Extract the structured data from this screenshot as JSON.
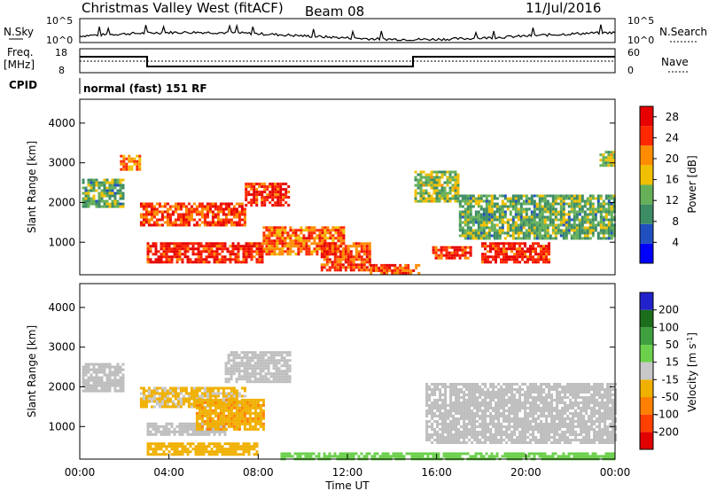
{
  "header": {
    "title": "Christmas Valley West (fitACF)",
    "beam": "Beam 08",
    "date": "11/Jul/2016"
  },
  "strips": {
    "nsky_label": "N.Sky",
    "nsky_ticks": [
      "10^5",
      "10^0"
    ],
    "nsearch_label": "N.Search",
    "nsearch_ticks": [
      "10^5",
      "10^0"
    ],
    "freq_label_1": "Freq.",
    "freq_label_2": "[MHz]",
    "freq_ticks": [
      "18",
      "8"
    ],
    "nave_label": "Nave",
    "nave_ticks": [
      "60",
      "0"
    ],
    "cpid_label": "CPID",
    "cpid_text": "normal (fast) 151 RF"
  },
  "colors": {
    "power_scale": [
      "#0000ff",
      "#2050c0",
      "#3c8c64",
      "#66b05a",
      "#f0c000",
      "#ff8c00",
      "#ff2800",
      "#e60000"
    ],
    "velocity_scale": [
      "#2222cc",
      "#1c6e1c",
      "#3fa03f",
      "#6cd04c",
      "#c8c8c8",
      "#f0b000",
      "#ff8000",
      "#ff4000",
      "#e00000"
    ],
    "ground_scatter": "#bebebe"
  },
  "chart_data": [
    {
      "type": "heatmap",
      "panel": "power",
      "title": "",
      "xlabel": "Time UT",
      "ylabel": "Slant Range [km]",
      "x_ticks": [
        "00:00",
        "04:00",
        "08:00",
        "12:00",
        "16:00",
        "20:00",
        "00:00"
      ],
      "y_ticks": [
        1000,
        2000,
        3000,
        4000
      ],
      "xlim": [
        0,
        24
      ],
      "ylim": [
        180,
        4600
      ],
      "colorbar": {
        "label": "Power [dB]",
        "ticks": [
          4,
          8,
          12,
          16,
          20,
          24,
          28
        ],
        "range": [
          0,
          30
        ]
      },
      "regions": [
        {
          "t0": 0.1,
          "t1": 2.0,
          "r0": 1900,
          "r1": 2600,
          "level": 12
        },
        {
          "t0": 1.8,
          "t1": 2.7,
          "r0": 2800,
          "r1": 3200,
          "level": 20
        },
        {
          "t0": 2.7,
          "t1": 7.4,
          "r0": 1400,
          "r1": 2000,
          "level": 24
        },
        {
          "t0": 7.4,
          "t1": 9.4,
          "r0": 1900,
          "r1": 2500,
          "level": 26
        },
        {
          "t0": 3.0,
          "t1": 8.2,
          "r0": 500,
          "r1": 1000,
          "level": 26
        },
        {
          "t0": 8.2,
          "t1": 11.8,
          "r0": 700,
          "r1": 1400,
          "level": 22
        },
        {
          "t0": 10.8,
          "t1": 13.0,
          "r0": 300,
          "r1": 1000,
          "level": 24
        },
        {
          "t0": 13.0,
          "t1": 15.2,
          "r0": 200,
          "r1": 450,
          "level": 24
        },
        {
          "t0": 15.8,
          "t1": 17.5,
          "r0": 600,
          "r1": 900,
          "level": 26
        },
        {
          "t0": 18.0,
          "t1": 21.0,
          "r0": 500,
          "r1": 1000,
          "level": 26
        },
        {
          "t0": 17.0,
          "t1": 24.0,
          "r0": 1100,
          "r1": 2200,
          "level": 12
        },
        {
          "t0": 15.0,
          "t1": 17.0,
          "r0": 2000,
          "r1": 2800,
          "level": 14
        },
        {
          "t0": 23.3,
          "t1": 24.0,
          "r0": 2900,
          "r1": 3300,
          "level": 14
        }
      ]
    },
    {
      "type": "heatmap",
      "panel": "velocity",
      "title": "",
      "xlabel": "Time UT",
      "ylabel": "Slant Range [km]",
      "x_ticks": [
        "00:00",
        "04:00",
        "08:00",
        "12:00",
        "16:00",
        "20:00",
        "00:00"
      ],
      "y_ticks": [
        1000,
        2000,
        3000,
        4000
      ],
      "xlim": [
        0,
        24
      ],
      "ylim": [
        180,
        4600
      ],
      "colorbar": {
        "label": "Velocity [m s^-1]",
        "ticks": [
          200,
          100,
          50,
          15,
          -15,
          -50,
          -100,
          -200
        ],
        "range": [
          -250,
          250
        ]
      },
      "regions": [
        {
          "t0": 0.1,
          "t1": 2.0,
          "r0": 1900,
          "r1": 2600,
          "level": 0
        },
        {
          "t0": 2.7,
          "t1": 7.4,
          "r0": 1500,
          "r1": 2000,
          "level": -30
        },
        {
          "t0": 3.0,
          "t1": 6.5,
          "r0": 800,
          "r1": 1100,
          "level": 0
        },
        {
          "t0": 5.2,
          "t1": 8.2,
          "r0": 900,
          "r1": 1700,
          "level": -80
        },
        {
          "t0": 3.0,
          "t1": 8.0,
          "r0": 300,
          "r1": 600,
          "level": -60
        },
        {
          "t0": 6.5,
          "t1": 9.4,
          "r0": 2100,
          "r1": 2900,
          "level": 0
        },
        {
          "t0": 15.5,
          "t1": 24.0,
          "r0": 600,
          "r1": 2100,
          "level": 0
        },
        {
          "t0": 9.0,
          "t1": 24.0,
          "r0": 200,
          "r1": 350,
          "level": 40
        }
      ]
    }
  ]
}
